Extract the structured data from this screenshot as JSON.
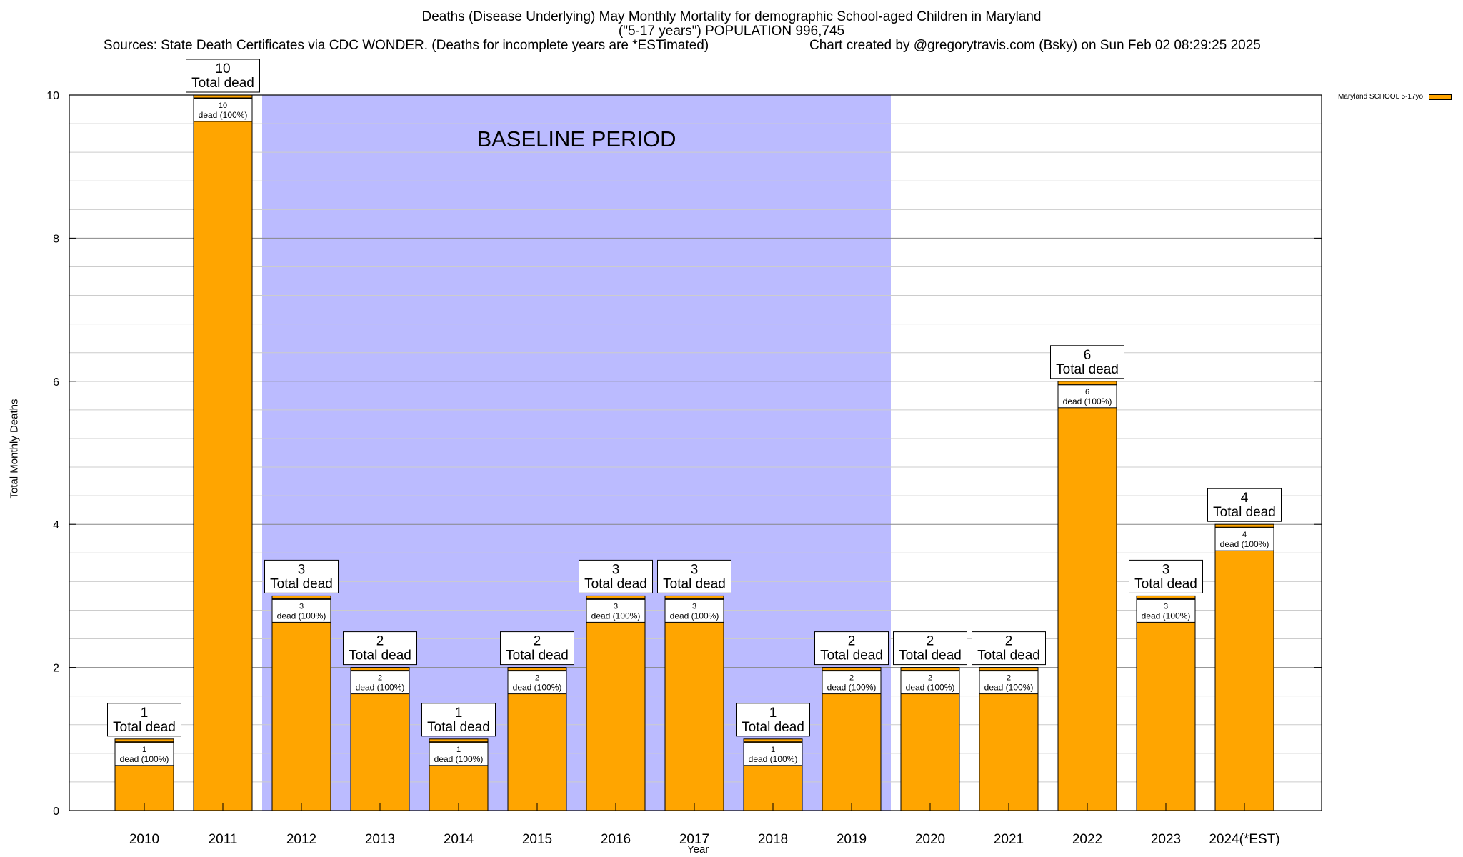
{
  "header": {
    "line1": "Deaths (Disease Underlying) May Monthly Mortality for demographic School-aged Children in Maryland",
    "line2": "(\"5-17 years\") POPULATION 996,745",
    "line3": "Sources: State Death Certificates via CDC WONDER. (Deaths for incomplete years are *ESTimated)",
    "line4": "Chart created by @gregorytravis.com (Bsky) on Sun Feb 02 08:29:25 2025"
  },
  "legend": {
    "label": "Maryland SCHOOL 5-17yo"
  },
  "colors": {
    "bar": "#ffa500",
    "baseline": "#bbbbff",
    "grid": "#cccccc"
  },
  "chart_data": {
    "type": "bar",
    "title": "Deaths (Disease Underlying) May Monthly Mortality for demographic School-aged Children in Maryland",
    "xlabel": "Year",
    "ylabel": "Total Monthly Deaths",
    "ylim": [
      0,
      10
    ],
    "yticks": [
      0,
      2,
      4,
      6,
      8,
      10
    ],
    "grid": true,
    "legend_position": "top-right",
    "categories": [
      "2010",
      "2011",
      "2012",
      "2013",
      "2014",
      "2015",
      "2016",
      "2017",
      "2018",
      "2019",
      "2020",
      "2021",
      "2022",
      "2023",
      "2024(*EST)"
    ],
    "series": [
      {
        "name": "Maryland SCHOOL 5-17yo",
        "values": [
          1,
          10,
          3,
          2,
          1,
          2,
          3,
          3,
          1,
          2,
          2,
          2,
          6,
          3,
          4
        ]
      }
    ],
    "total_label": "Total dead",
    "inner_label": "dead (100%)",
    "baseline": {
      "label": "BASELINE PERIOD",
      "from": "2012",
      "to": "2019"
    }
  }
}
